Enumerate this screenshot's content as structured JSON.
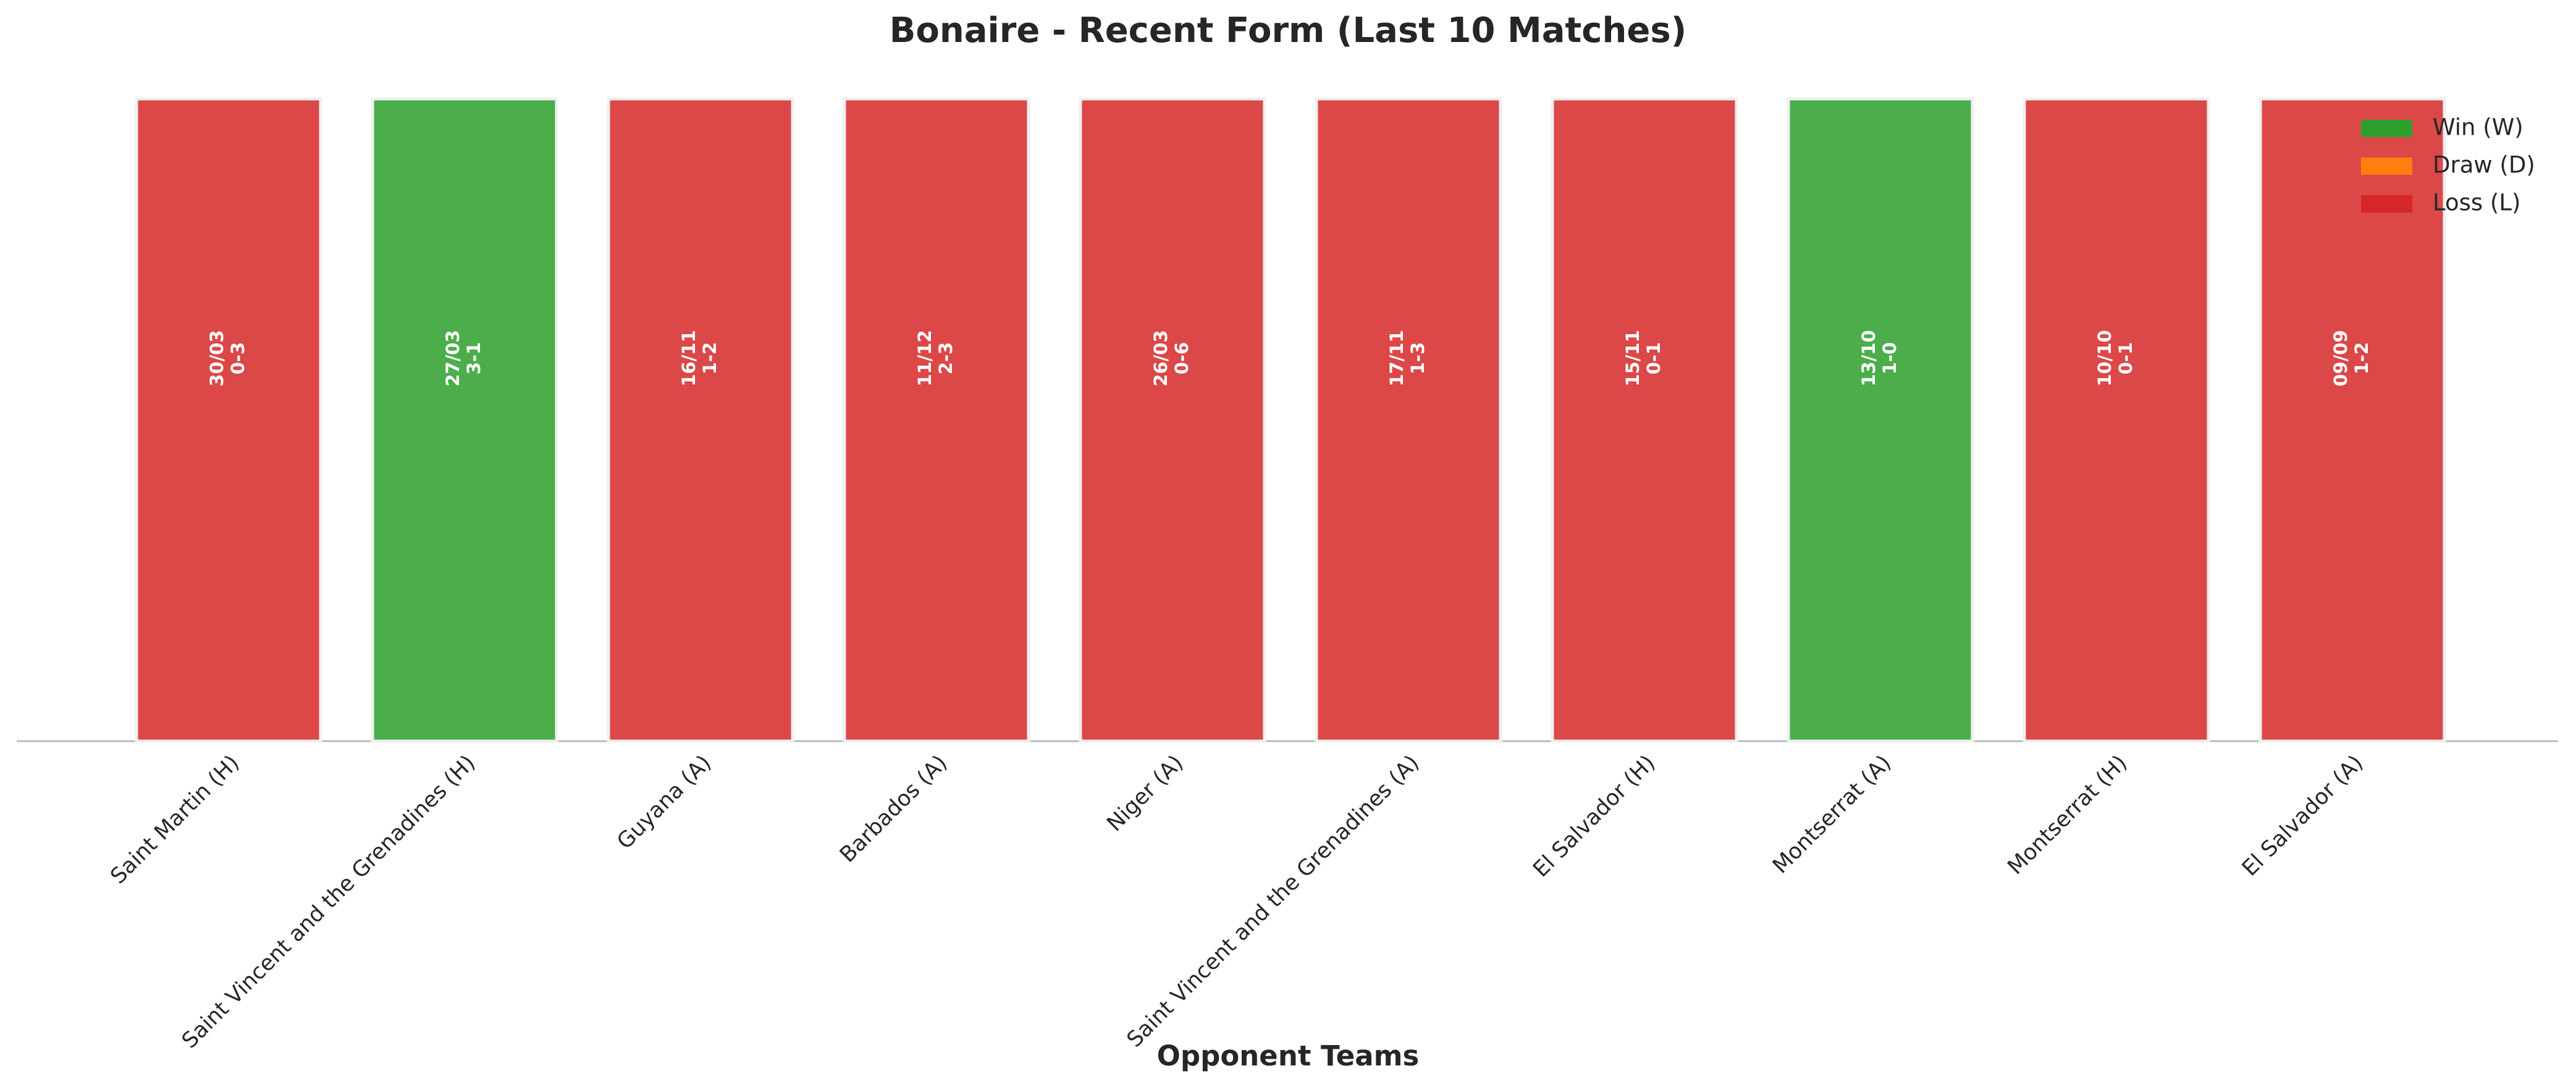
{
  "chart_data": {
    "type": "bar",
    "title": "Bonaire - Recent Form (Last 10 Matches)",
    "x_label": "Opponent Teams",
    "categories": [
      "Saint Martin (H)",
      "Saint Vincent and the Grenadines (H)",
      "Guyana (A)",
      "Barbados (A)",
      "Niger (A)",
      "Saint Vincent and the Grenadines (A)",
      "El Salvador (H)",
      "Montserrat (A)",
      "Montserrat (H)",
      "El Salvador (A)"
    ],
    "values": [
      1,
      1,
      1,
      1,
      1,
      1,
      1,
      1,
      1,
      1
    ],
    "dates": [
      "30/03",
      "27/03",
      "16/11",
      "11/12",
      "26/03",
      "17/11",
      "15/11",
      "13/10",
      "10/10",
      "09/09"
    ],
    "scores": [
      "0-3",
      "3-1",
      "1-2",
      "2-3",
      "0-6",
      "1-3",
      "0-1",
      "1-0",
      "0-1",
      "1-2"
    ],
    "colors": [
      "#d62728",
      "#2ca02c",
      "#d62728",
      "#d62728",
      "#d62728",
      "#d62728",
      "#d62728",
      "#2ca02c",
      "#d62728",
      "#d62728"
    ],
    "ylim": [
      0,
      1
    ],
    "legend": [
      {
        "name": "Win (W)",
        "color": "#2ca02c"
      },
      {
        "name": "Draw (D)",
        "color": "#ff7f0e"
      },
      {
        "name": "Loss (L)",
        "color": "#d62728"
      }
    ],
    "legend_position": "upper right"
  }
}
